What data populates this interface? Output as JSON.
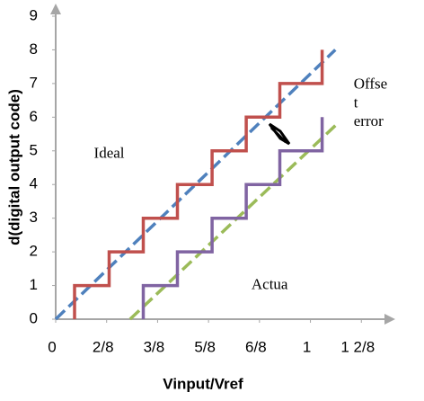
{
  "chart_data": {
    "type": "line",
    "x_label": "Vinput/Vref",
    "y_label": "d(digital output code)",
    "xlim": [
      0,
      6.63
    ],
    "ylim": [
      0,
      9
    ],
    "xticks": [
      0,
      {
        "value": 1,
        "label": "2/8"
      },
      {
        "value": 2,
        "label": "3/8"
      },
      {
        "value": 3,
        "label": "5/8"
      },
      {
        "value": 4,
        "label": "6/8"
      },
      {
        "value": 5,
        "label": "1"
      },
      {
        "value": 6,
        "label": "1 2/8"
      }
    ],
    "yticks": [
      0,
      1,
      2,
      3,
      4,
      5,
      6,
      7,
      8,
      9
    ],
    "series": [
      {
        "color": "#c0504d",
        "style": "solid",
        "x": [
          0.37,
          0.37,
          1.05,
          1.05,
          1.72,
          1.72,
          2.39,
          2.39,
          3.07,
          3.07,
          3.74,
          3.74,
          4.4,
          4.4,
          5.23,
          5.23
        ],
        "values": [
          0,
          1,
          1,
          2,
          2,
          3,
          3,
          4,
          4,
          5,
          5,
          6,
          6,
          7,
          7,
          8
        ]
      },
      {
        "color": "#8064a2",
        "style": "solid",
        "x": [
          1.72,
          1.72,
          2.39,
          2.39,
          3.07,
          3.07,
          3.74,
          3.74,
          4.4,
          4.4,
          5.23,
          5.23
        ],
        "values": [
          0,
          1,
          1,
          2,
          2,
          3,
          3,
          4,
          4,
          5,
          5,
          6
        ]
      },
      {
        "color": "#4f81bd",
        "style": "dashed",
        "x": [
          0,
          5.49
        ],
        "values": [
          0,
          8
        ]
      },
      {
        "color": "#9bbb59",
        "style": "dashed",
        "x": [
          1.46,
          5.49
        ],
        "values": [
          0,
          5.75
        ]
      }
    ],
    "annotations": [
      {
        "text": "Ideal",
        "x": 1.05,
        "y": 4.9
      },
      {
        "text": "Actua",
        "x": 4.2,
        "y": 1.0
      },
      {
        "text": "Offse",
        "x": 5.85,
        "y": 6.95
      },
      {
        "text": "t",
        "x": 5.85,
        "y": 6.4
      },
      {
        "text": "error",
        "x": 5.85,
        "y": 5.85
      }
    ]
  }
}
